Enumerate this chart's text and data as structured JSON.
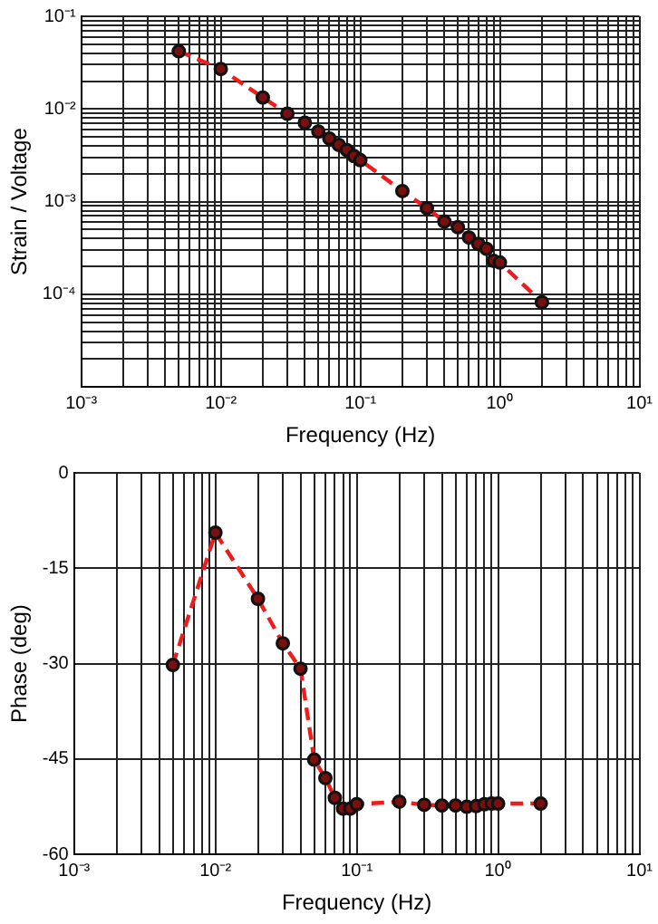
{
  "chart_data": [
    {
      "type": "line",
      "xlabel": "Frequency (Hz)",
      "ylabel": "Strain / Voltage",
      "log": "xy",
      "grid": true,
      "marker": "circle",
      "line_style": "dashed",
      "legend": false,
      "x": [
        0.005,
        0.01,
        0.02,
        0.03,
        0.04,
        0.05,
        0.06,
        0.07,
        0.08,
        0.09,
        0.1,
        0.2,
        0.3,
        0.4,
        0.5,
        0.6,
        0.7,
        0.8,
        0.9,
        1.0,
        2.0
      ],
      "series": [
        {
          "color": "#ee1c1c",
          "values": [
            0.042,
            0.027,
            0.0133,
            0.0089,
            0.0071,
            0.0057,
            0.0048,
            0.0041,
            0.0036,
            0.0031,
            0.0028,
            0.0013,
            0.00085,
            0.00061,
            0.00053,
            0.00041,
            0.00035,
            0.00031,
            0.00023,
            0.00022,
            8.2e-05
          ]
        }
      ],
      "xlim": [
        0.001,
        10
      ],
      "ylim": [
        1e-05,
        0.1
      ],
      "xticks": [
        {
          "value": 0.001,
          "label": "10⁻³"
        },
        {
          "value": 0.002,
          "label": null
        },
        {
          "value": 0.003,
          "label": null
        },
        {
          "value": 0.004,
          "label": null
        },
        {
          "value": 0.005,
          "label": null
        },
        {
          "value": 0.006,
          "label": null
        },
        {
          "value": 0.007,
          "label": null
        },
        {
          "value": 0.008,
          "label": null
        },
        {
          "value": 0.009,
          "label": null
        },
        {
          "value": 0.01,
          "label": "10⁻²"
        },
        {
          "value": 0.02,
          "label": null
        },
        {
          "value": 0.03,
          "label": null
        },
        {
          "value": 0.04,
          "label": null
        },
        {
          "value": 0.05,
          "label": null
        },
        {
          "value": 0.06,
          "label": null
        },
        {
          "value": 0.07,
          "label": null
        },
        {
          "value": 0.08,
          "label": null
        },
        {
          "value": 0.09,
          "label": null
        },
        {
          "value": 0.1,
          "label": "10⁻¹"
        },
        {
          "value": 0.2,
          "label": null
        },
        {
          "value": 0.3,
          "label": null
        },
        {
          "value": 0.4,
          "label": null
        },
        {
          "value": 0.5,
          "label": null
        },
        {
          "value": 0.6,
          "label": null
        },
        {
          "value": 0.7,
          "label": null
        },
        {
          "value": 0.8,
          "label": null
        },
        {
          "value": 0.9,
          "label": null
        },
        {
          "value": 1,
          "label": "10⁰"
        },
        {
          "value": 2,
          "label": null
        },
        {
          "value": 3,
          "label": null
        },
        {
          "value": 4,
          "label": null
        },
        {
          "value": 5,
          "label": null
        },
        {
          "value": 6,
          "label": null
        },
        {
          "value": 7,
          "label": null
        },
        {
          "value": 8,
          "label": null
        },
        {
          "value": 9,
          "label": null
        },
        {
          "value": 10,
          "label": "10¹"
        }
      ],
      "yticks": [
        {
          "value": 1e-05,
          "label": null
        },
        {
          "value": 2e-05,
          "label": null
        },
        {
          "value": 3e-05,
          "label": null
        },
        {
          "value": 4e-05,
          "label": null
        },
        {
          "value": 5e-05,
          "label": null
        },
        {
          "value": 6e-05,
          "label": null
        },
        {
          "value": 7e-05,
          "label": null
        },
        {
          "value": 8e-05,
          "label": null
        },
        {
          "value": 9e-05,
          "label": null
        },
        {
          "value": 0.0001,
          "label": "10⁻⁴"
        },
        {
          "value": 0.0002,
          "label": null
        },
        {
          "value": 0.0003,
          "label": null
        },
        {
          "value": 0.0004,
          "label": null
        },
        {
          "value": 0.0005,
          "label": null
        },
        {
          "value": 0.0006,
          "label": null
        },
        {
          "value": 0.0007,
          "label": null
        },
        {
          "value": 0.0008,
          "label": null
        },
        {
          "value": 0.0009,
          "label": null
        },
        {
          "value": 0.001,
          "label": "10⁻³"
        },
        {
          "value": 0.002,
          "label": null
        },
        {
          "value": 0.003,
          "label": null
        },
        {
          "value": 0.004,
          "label": null
        },
        {
          "value": 0.005,
          "label": null
        },
        {
          "value": 0.006,
          "label": null
        },
        {
          "value": 0.007,
          "label": null
        },
        {
          "value": 0.008,
          "label": null
        },
        {
          "value": 0.009,
          "label": null
        },
        {
          "value": 0.01,
          "label": "10⁻²"
        },
        {
          "value": 0.02,
          "label": null
        },
        {
          "value": 0.03,
          "label": null
        },
        {
          "value": 0.04,
          "label": null
        },
        {
          "value": 0.05,
          "label": null
        },
        {
          "value": 0.06,
          "label": null
        },
        {
          "value": 0.07,
          "label": null
        },
        {
          "value": 0.08,
          "label": null
        },
        {
          "value": 0.09,
          "label": null
        },
        {
          "value": 0.1,
          "label": "10⁻¹"
        }
      ]
    },
    {
      "type": "line",
      "xlabel": "Frequency (Hz)",
      "ylabel": "Phase (deg)",
      "log": "x",
      "grid": true,
      "marker": "circle",
      "line_style": "dashed",
      "legend": false,
      "x": [
        0.005,
        0.01,
        0.02,
        0.03,
        0.04,
        0.05,
        0.06,
        0.07,
        0.08,
        0.09,
        0.1,
        0.2,
        0.3,
        0.4,
        0.5,
        0.6,
        0.7,
        0.8,
        0.9,
        1.0,
        2.0
      ],
      "series": [
        {
          "color": "#ee1c1c",
          "values": [
            -30.2,
            -9.4,
            -19.8,
            -26.8,
            -30.8,
            -45.1,
            -48.0,
            -51.1,
            -52.8,
            -52.8,
            -52.1,
            -51.7,
            -52.2,
            -52.3,
            -52.3,
            -52.5,
            -52.4,
            -52.1,
            -52.0,
            -52.0,
            -52.0
          ]
        }
      ],
      "xlim": [
        0.001,
        10
      ],
      "ylim": [
        -60,
        0
      ],
      "xticks": [
        {
          "value": 0.001,
          "label": "10⁻³"
        },
        {
          "value": 0.002,
          "label": null
        },
        {
          "value": 0.003,
          "label": null
        },
        {
          "value": 0.004,
          "label": null
        },
        {
          "value": 0.005,
          "label": null
        },
        {
          "value": 0.006,
          "label": null
        },
        {
          "value": 0.007,
          "label": null
        },
        {
          "value": 0.008,
          "label": null
        },
        {
          "value": 0.009,
          "label": null
        },
        {
          "value": 0.01,
          "label": "10⁻²"
        },
        {
          "value": 0.02,
          "label": null
        },
        {
          "value": 0.03,
          "label": null
        },
        {
          "value": 0.04,
          "label": null
        },
        {
          "value": 0.05,
          "label": null
        },
        {
          "value": 0.06,
          "label": null
        },
        {
          "value": 0.07,
          "label": null
        },
        {
          "value": 0.08,
          "label": null
        },
        {
          "value": 0.09,
          "label": null
        },
        {
          "value": 0.1,
          "label": "10⁻¹"
        },
        {
          "value": 0.2,
          "label": null
        },
        {
          "value": 0.3,
          "label": null
        },
        {
          "value": 0.4,
          "label": null
        },
        {
          "value": 0.5,
          "label": null
        },
        {
          "value": 0.6,
          "label": null
        },
        {
          "value": 0.7,
          "label": null
        },
        {
          "value": 0.8,
          "label": null
        },
        {
          "value": 0.9,
          "label": null
        },
        {
          "value": 1,
          "label": "10⁰"
        },
        {
          "value": 2,
          "label": null
        },
        {
          "value": 3,
          "label": null
        },
        {
          "value": 4,
          "label": null
        },
        {
          "value": 5,
          "label": null
        },
        {
          "value": 6,
          "label": null
        },
        {
          "value": 7,
          "label": null
        },
        {
          "value": 8,
          "label": null
        },
        {
          "value": 9,
          "label": null
        },
        {
          "value": 10,
          "label": "10¹"
        }
      ],
      "yticks": [
        -60,
        -45,
        -30,
        -15,
        0
      ]
    }
  ]
}
